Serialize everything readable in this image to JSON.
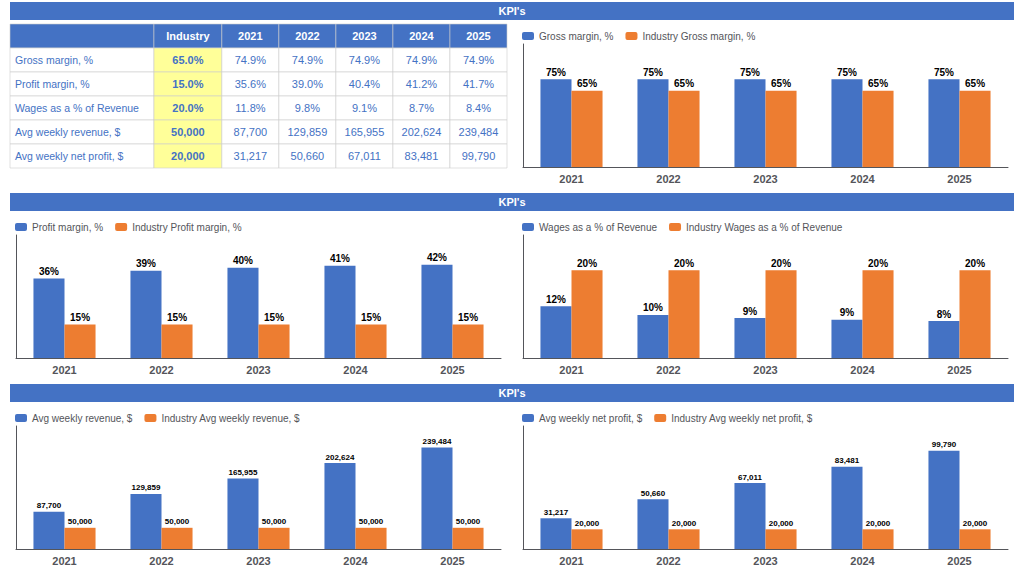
{
  "chart_data": [
    {
      "type": "banner",
      "title": "KPI's",
      "color": "#4472C4"
    },
    {
      "type": "table",
      "color": "#4472C4",
      "columns": [
        null,
        "Industry",
        "2021",
        "2022",
        "2023",
        "2024",
        "2025"
      ],
      "rows": [
        [
          "Gross margin, %",
          "65.0%",
          "74.9%",
          "74.9%",
          "74.9%",
          "74.9%",
          "74.9%"
        ],
        [
          "Profit margin, %",
          "15.0%",
          "35.6%",
          "39.0%",
          "40.4%",
          "41.2%",
          "41.7%"
        ],
        [
          "Wages as a % of Revenue",
          "20.0%",
          "11.8%",
          "9.8%",
          "9.1%",
          "8.7%",
          "8.4%"
        ],
        [
          "Avg weekly revenue, $",
          "50,000",
          "87,700",
          "129,859",
          "165,955",
          "202,624",
          "239,484"
        ],
        [
          "Avg weekly net profit, $",
          "20,000",
          "31,217",
          "50,660",
          "67,011",
          "83,481",
          "99,790"
        ]
      ]
    },
    {
      "type": "bar",
      "categories": [
        "2021",
        "2022",
        "2023",
        "2024",
        "2025"
      ],
      "series": [
        {
          "name": "Gross margin, %",
          "color": "#4472C4",
          "values": [
            74.9,
            74.9,
            74.9,
            74.9,
            74.9
          ],
          "value_labels": [
            "75%",
            "75%",
            "75%",
            "75%",
            "75%"
          ]
        },
        {
          "name": "Industry Gross margin, %",
          "color": "#ED7D31",
          "values": [
            65,
            65,
            65,
            65,
            65
          ],
          "value_labels": [
            "65%",
            "65%",
            "65%",
            "65%",
            "65%"
          ]
        }
      ],
      "ylim": [
        0,
        105
      ],
      "grid": false,
      "legend": "upper left",
      "data_labels": true,
      "tick_labels": "x"
    },
    {
      "type": "banner",
      "title": "KPI's",
      "color": "#4472C4"
    },
    {
      "type": "bar",
      "categories": [
        "2021",
        "2022",
        "2023",
        "2024",
        "2025"
      ],
      "series": [
        {
          "name": "Profit margin, %",
          "color": "#4472C4",
          "values": [
            35.6,
            39.0,
            40.4,
            41.2,
            41.7
          ],
          "value_labels": [
            "36%",
            "39%",
            "40%",
            "41%",
            "42%"
          ]
        },
        {
          "name": "Industry Profit margin, %",
          "color": "#ED7D31",
          "values": [
            15,
            15,
            15,
            15,
            15
          ],
          "value_labels": [
            "15%",
            "15%",
            "15%",
            "15%",
            "15%"
          ]
        }
      ],
      "ylim": [
        0,
        55
      ],
      "grid": false,
      "legend": "upper left",
      "data_labels": true,
      "tick_labels": "x"
    },
    {
      "type": "bar",
      "categories": [
        "2021",
        "2022",
        "2023",
        "2024",
        "2025"
      ],
      "series": [
        {
          "name": "Wages as a % of Revenue",
          "color": "#4472C4",
          "values": [
            11.8,
            9.8,
            9.1,
            8.7,
            8.4
          ],
          "value_labels": [
            "12%",
            "10%",
            "9%",
            "9%",
            "8%"
          ]
        },
        {
          "name": "Industry Wages as a % of Revenue",
          "color": "#ED7D31",
          "values": [
            20,
            20,
            20,
            20,
            20
          ],
          "value_labels": [
            "20%",
            "20%",
            "20%",
            "20%",
            "20%"
          ]
        }
      ],
      "ylim": [
        0,
        28
      ],
      "grid": false,
      "legend": "upper left",
      "data_labels": true,
      "tick_labels": "x"
    },
    {
      "type": "banner",
      "title": "KPI's",
      "color": "#4472C4"
    },
    {
      "type": "bar",
      "categories": [
        "2021",
        "2022",
        "2023",
        "2024",
        "2025"
      ],
      "series": [
        {
          "name": "Avg weekly revenue, $",
          "color": "#4472C4",
          "values": [
            87700,
            129859,
            165955,
            202624,
            239484
          ],
          "value_labels": [
            "87,700",
            "129,859",
            "165,955",
            "202,624",
            "239,484"
          ]
        },
        {
          "name": "Industry Avg weekly revenue, $",
          "color": "#ED7D31",
          "values": [
            50000,
            50000,
            50000,
            50000,
            50000
          ],
          "value_labels": [
            "50,000",
            "50,000",
            "50,000",
            "50,000",
            "50,000"
          ]
        }
      ],
      "ylim": [
        0,
        290000
      ],
      "grid": false,
      "legend": "upper left",
      "data_labels": true,
      "tick_labels": "x"
    },
    {
      "type": "bar",
      "categories": [
        "2021",
        "2022",
        "2023",
        "2024",
        "2025"
      ],
      "series": [
        {
          "name": "Avg weekly net profit, $",
          "color": "#4472C4",
          "values": [
            31217,
            50660,
            67011,
            83481,
            99790
          ],
          "value_labels": [
            "31,217",
            "50,660",
            "67,011",
            "83,481",
            "99,790"
          ]
        },
        {
          "name": "Industry Avg weekly net profit, $",
          "color": "#ED7D31",
          "values": [
            20000,
            20000,
            20000,
            20000,
            20000
          ],
          "value_labels": [
            "20,000",
            "20,000",
            "20,000",
            "20,000",
            "20,000"
          ]
        }
      ],
      "ylim": [
        0,
        125000
      ],
      "grid": false,
      "legend": "upper left",
      "data_labels": true,
      "tick_labels": "x"
    }
  ]
}
